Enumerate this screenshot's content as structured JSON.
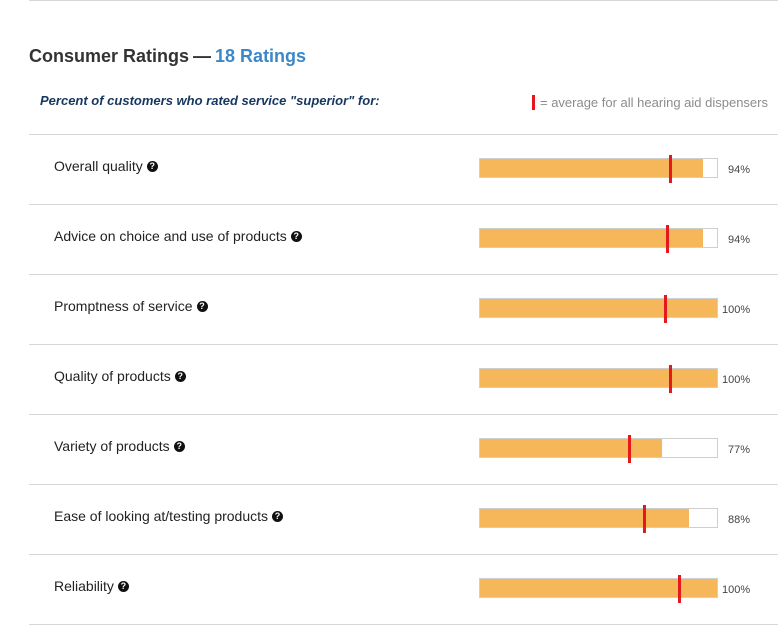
{
  "header": {
    "title": "Consumer Ratings",
    "separator": "—",
    "ratings_count_link": "18 Ratings"
  },
  "subheader": {
    "question": "Percent of customers who rated service \"superior\" for:",
    "legend_text": "= average for all hearing aid dispensers"
  },
  "colors": {
    "bar_fill": "#f5b759",
    "average_marker": "#e5191b",
    "ratings_link": "#3b87c8",
    "subheader_text": "#17375e"
  },
  "help_icon": {
    "glyph": "?",
    "icon_name": "question-circle-icon"
  },
  "ratings": [
    {
      "label": "Overall quality",
      "percent": 94,
      "percent_text": "94%",
      "average": 80
    },
    {
      "label": "Advice on choice and use of products",
      "percent": 94,
      "percent_text": "94%",
      "average": 79
    },
    {
      "label": "Promptness of service",
      "percent": 100,
      "percent_text": "100%",
      "average": 78
    },
    {
      "label": "Quality of products",
      "percent": 100,
      "percent_text": "100%",
      "average": 80
    },
    {
      "label": "Variety of products",
      "percent": 77,
      "percent_text": "77%",
      "average": 63
    },
    {
      "label": "Ease of looking at/testing products",
      "percent": 88,
      "percent_text": "88%",
      "average": 69
    },
    {
      "label": "Reliability",
      "percent": 100,
      "percent_text": "100%",
      "average": 84
    }
  ]
}
